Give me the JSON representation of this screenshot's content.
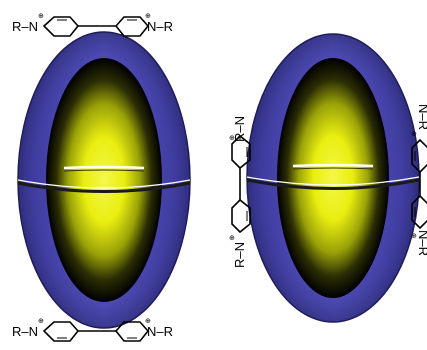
{
  "figure": {
    "capsule_left": {
      "top_label_left": "R–N",
      "top_label_right": "N–R",
      "bottom_label_left": "R–N",
      "bottom_label_right": "N–R",
      "charge": "⊕"
    },
    "capsule_right": {
      "left_label_top": "R–N",
      "left_label_bottom": "R–N",
      "right_label_top": "N–R",
      "right_label_bottom": "N–R",
      "charge": "⊕"
    },
    "colors": {
      "shell": "#4a46b0",
      "shell_edge": "#1e1a55",
      "cavity_core": "#eef21a",
      "cavity_mid": "#a6b00a",
      "cavity_edge": "#000000",
      "seam": "#ffffff"
    }
  }
}
